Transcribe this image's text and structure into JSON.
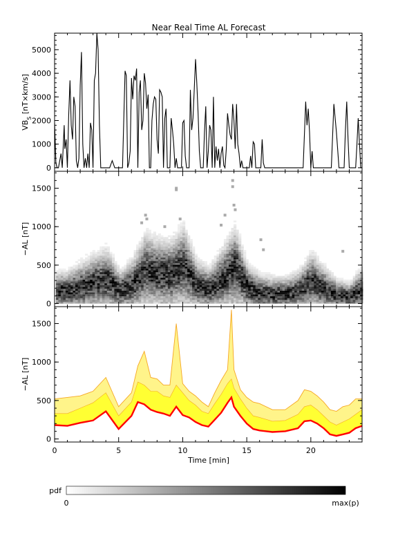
{
  "title": "Near Real Time AL Forecast",
  "colors": {
    "background": "#ffffff",
    "axes": "#000000",
    "vbs_line": "#000000",
    "band_inner": "#ffff33",
    "band_outer": "#fff48a",
    "band_edge": "#f5a623",
    "median": "#ff0000"
  },
  "panel1": {
    "ylabel_main": "VB",
    "ylabel_sub": "S",
    "ylabel_rest": " [nT×km/s]"
  },
  "panel2": {
    "ylabel": "−AL [nT]"
  },
  "panel3": {
    "ylabel": "−AL [nT]"
  },
  "xlabel": "Time [min]",
  "colorbar": {
    "label": "pdf",
    "min_label": "0",
    "max_label": "max(p)"
  },
  "chart_data": [
    {
      "type": "line",
      "title": "Near Real Time AL Forecast",
      "ylabel": "VBs [nT×km/s]",
      "xlim": [
        0,
        24
      ],
      "ylim": [
        -150,
        5700
      ],
      "xticks": [
        0,
        5,
        10,
        15,
        20
      ],
      "yticks": [
        0,
        1000,
        2000,
        3000,
        4000,
        5000
      ],
      "ytick_labels": [
        "0",
        "1000",
        "2000",
        "3000",
        "4000",
        "5000"
      ],
      "series": [
        {
          "x": [
            0,
            0.1,
            0.2,
            0.3,
            0.5,
            0.6,
            0.75,
            0.8,
            0.9,
            1.0,
            1.1,
            1.2,
            1.3,
            1.4,
            1.5,
            1.6,
            1.7,
            1.8,
            1.9,
            2.0,
            2.1,
            2.2,
            2.3,
            2.4,
            2.5,
            2.6,
            2.7,
            2.8,
            2.9,
            3.0,
            3.1,
            3.2,
            3.3,
            3.4,
            3.5,
            3.6,
            3.7,
            3.8,
            3.9,
            4.0,
            4.1,
            4.2,
            4.3,
            4.5,
            4.7,
            4.9,
            5.1,
            5.3,
            5.5,
            5.6,
            5.7,
            5.8,
            5.9,
            6.0,
            6.1,
            6.2,
            6.3,
            6.4,
            6.5,
            6.6,
            6.7,
            6.8,
            6.9,
            7.0,
            7.1,
            7.2,
            7.3,
            7.4,
            7.5,
            7.6,
            7.7,
            7.8,
            7.9,
            8.0,
            8.1,
            8.2,
            8.3,
            8.4,
            8.5,
            8.6,
            8.7,
            8.8,
            8.9,
            9.0,
            9.1,
            9.2,
            9.3,
            9.4,
            9.5,
            9.6,
            9.7,
            9.8,
            9.9,
            10.0,
            10.1,
            10.2,
            10.3,
            10.4,
            10.5,
            10.6,
            10.7,
            10.8,
            10.9,
            11.0,
            11.1,
            11.2,
            11.3,
            11.4,
            11.5,
            11.6,
            11.7,
            11.8,
            11.9,
            12.0,
            12.1,
            12.2,
            12.3,
            12.4,
            12.5,
            12.6,
            12.7,
            12.8,
            12.9,
            13.0,
            13.1,
            13.2,
            13.3,
            13.4,
            13.5,
            13.6,
            13.7,
            13.8,
            13.9,
            14.0,
            14.1,
            14.2,
            14.3,
            14.4,
            14.5,
            14.6,
            14.7,
            14.8,
            14.9,
            15.0,
            15.1,
            15.2,
            15.3,
            15.4,
            15.5,
            15.6,
            15.7,
            15.8,
            15.9,
            16.0,
            16.1,
            16.2,
            16.3,
            16.4,
            16.5,
            16.6,
            16.7,
            16.8,
            16.9,
            17.0,
            17.2,
            17.4,
            17.6,
            17.8,
            18.0,
            18.2,
            18.4,
            18.6,
            18.8,
            19.0,
            19.2,
            19.4,
            19.6,
            19.7,
            19.8,
            19.9,
            20.0,
            20.1,
            20.2,
            20.3,
            20.4,
            20.5,
            20.6,
            20.8,
            21.0,
            21.2,
            21.4,
            21.6,
            21.8,
            22.0,
            22.2,
            22.4,
            22.5,
            22.6,
            22.7,
            22.8,
            22.9,
            23.0,
            23.1,
            23.2,
            23.3,
            23.4,
            23.5,
            23.6,
            23.7,
            23.8,
            23.9,
            24.0
          ],
          "y": [
            1900,
            200,
            0,
            0,
            600,
            0,
            1800,
            800,
            1200,
            0,
            2200,
            3700,
            1800,
            1200,
            3000,
            2600,
            300,
            0,
            400,
            3500,
            4900,
            1000,
            0,
            400,
            0,
            600,
            0,
            1900,
            1600,
            0,
            3700,
            4000,
            5700,
            5000,
            1800,
            0,
            0,
            0,
            0,
            0,
            0,
            0,
            0,
            300,
            0,
            0,
            0,
            0,
            4100,
            3900,
            0,
            200,
            700,
            3800,
            2900,
            3900,
            3700,
            4200,
            0,
            3200,
            3700,
            1600,
            2000,
            4000,
            3600,
            2500,
            3100,
            0,
            0,
            2000,
            2700,
            3000,
            2900,
            1200,
            600,
            3300,
            3200,
            3000,
            0,
            2100,
            2500,
            0,
            0,
            0,
            2100,
            1600,
            1000,
            0,
            400,
            0,
            0,
            0,
            0,
            1900,
            2000,
            500,
            0,
            0,
            0,
            3300,
            1600,
            2100,
            3300,
            4600,
            3600,
            2300,
            700,
            0,
            0,
            0,
            1500,
            2600,
            0,
            700,
            1800,
            1600,
            0,
            3000,
            0,
            900,
            300,
            800,
            0,
            600,
            900,
            100,
            0,
            800,
            2300,
            1800,
            1400,
            1200,
            2700,
            2000,
            800,
            2700,
            1000,
            600,
            0,
            300,
            0,
            0,
            0,
            0,
            0,
            0,
            500,
            0,
            1100,
            1000,
            0,
            0,
            0,
            0,
            0,
            1200,
            200,
            0,
            0,
            0,
            0,
            0,
            0,
            0,
            0,
            0,
            0,
            0,
            0,
            0,
            0,
            0,
            0,
            0,
            0,
            0,
            2800,
            1800,
            2500,
            1500,
            0,
            700,
            0,
            0,
            0,
            0,
            0,
            0,
            0,
            0,
            0,
            0,
            2700,
            1500,
            0,
            0,
            0,
            0,
            1600,
            2800,
            1300,
            0,
            0,
            0,
            0,
            0,
            0,
            1000,
            2100,
            1000,
            0,
            0
          ]
        }
      ]
    },
    {
      "type": "heatmap",
      "ylabel": "−AL [nT]",
      "xlim": [
        0,
        24
      ],
      "ylim": [
        -40,
        1720
      ],
      "xticks": [
        0,
        5,
        10,
        15,
        20
      ],
      "yticks": [
        0,
        500,
        1000,
        1500
      ],
      "ytick_labels": [
        "0",
        "500",
        "1000",
        "1500"
      ],
      "colorscale": [
        "#ffffff",
        "#000000"
      ],
      "center_x": [
        0,
        1,
        2,
        3,
        4,
        5,
        6,
        7,
        8,
        9,
        10,
        11,
        12,
        13,
        14,
        15,
        16,
        17,
        18,
        19,
        20,
        21,
        22,
        23,
        24
      ],
      "center_y": [
        150,
        150,
        200,
        260,
        300,
        150,
        220,
        420,
        380,
        360,
        470,
        230,
        170,
        300,
        460,
        190,
        120,
        110,
        110,
        150,
        280,
        170,
        90,
        80,
        180
      ],
      "spread_y": [
        120,
        130,
        160,
        180,
        200,
        130,
        170,
        240,
        220,
        220,
        260,
        160,
        140,
        200,
        260,
        150,
        120,
        110,
        110,
        130,
        180,
        140,
        100,
        90,
        150
      ],
      "outlier_points": [
        {
          "x": 9.5,
          "y": 1480
        },
        {
          "x": 9.5,
          "y": 1500
        },
        {
          "x": 13.9,
          "y": 1600
        },
        {
          "x": 13.9,
          "y": 1520
        },
        {
          "x": 14.0,
          "y": 1280
        },
        {
          "x": 13.3,
          "y": 1150
        },
        {
          "x": 14.1,
          "y": 1220
        },
        {
          "x": 7.1,
          "y": 1150
        },
        {
          "x": 7.2,
          "y": 1100
        },
        {
          "x": 6.8,
          "y": 1050
        },
        {
          "x": 9.8,
          "y": 1100
        },
        {
          "x": 8.6,
          "y": 1000
        },
        {
          "x": 13.0,
          "y": 1020
        },
        {
          "x": 16.1,
          "y": 830
        },
        {
          "x": 16.3,
          "y": 700
        },
        {
          "x": 22.5,
          "y": 680
        }
      ]
    },
    {
      "type": "area",
      "ylabel": "−AL [nT]",
      "xlabel": "Time [min]",
      "xlim": [
        0,
        24
      ],
      "ylim": [
        -40,
        1720
      ],
      "xticks": [
        0,
        5,
        10,
        15,
        20
      ],
      "xtick_labels": [
        "0",
        "5",
        "10",
        "15",
        "20"
      ],
      "yticks": [
        0,
        500,
        1000,
        1500
      ],
      "ytick_labels": [
        "0",
        "500",
        "1000",
        "1500"
      ],
      "x": [
        0,
        1,
        2,
        3,
        4,
        5,
        6,
        6.5,
        7,
        7.5,
        8,
        8.5,
        9,
        9.5,
        10,
        10.5,
        11,
        11.5,
        12,
        12.5,
        13,
        13.5,
        13.8,
        14,
        14.5,
        15,
        15.5,
        16,
        17,
        18,
        19,
        19.5,
        20,
        20.5,
        21,
        21.5,
        22,
        22.5,
        23,
        23.5,
        24
      ],
      "series": [
        {
          "name": "median",
          "values": [
            180,
            170,
            210,
            240,
            360,
            130,
            300,
            480,
            450,
            380,
            350,
            330,
            300,
            420,
            310,
            280,
            220,
            180,
            160,
            250,
            340,
            470,
            540,
            420,
            300,
            200,
            130,
            110,
            90,
            100,
            140,
            230,
            240,
            200,
            140,
            60,
            40,
            60,
            80,
            140,
            170
          ]
        },
        {
          "name": "inner_upper",
          "values": [
            330,
            330,
            400,
            470,
            600,
            300,
            480,
            740,
            700,
            620,
            620,
            560,
            540,
            700,
            600,
            500,
            440,
            360,
            330,
            460,
            580,
            720,
            780,
            660,
            520,
            400,
            300,
            280,
            230,
            240,
            320,
            420,
            440,
            380,
            300,
            220,
            180,
            220,
            260,
            320,
            380
          ]
        },
        {
          "name": "outer_upper",
          "values": [
            520,
            540,
            560,
            620,
            800,
            420,
            600,
            950,
            1140,
            800,
            780,
            700,
            700,
            1500,
            720,
            620,
            560,
            480,
            420,
            600,
            760,
            900,
            1680,
            900,
            640,
            540,
            480,
            460,
            380,
            380,
            500,
            640,
            620,
            560,
            480,
            380,
            360,
            420,
            440,
            520,
            520
          ]
        }
      ]
    }
  ]
}
